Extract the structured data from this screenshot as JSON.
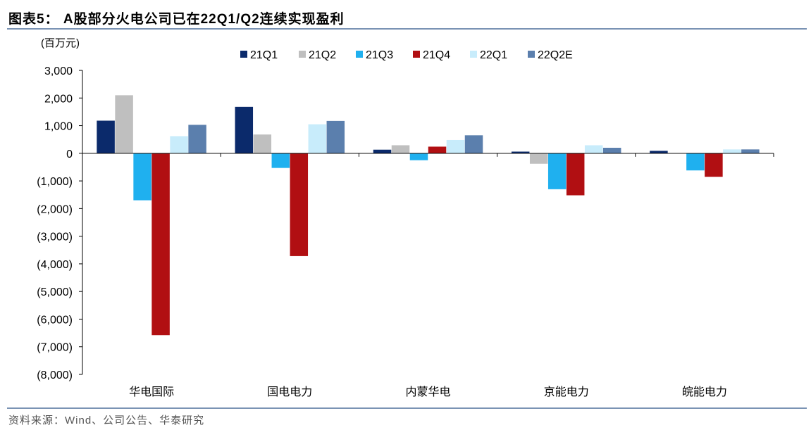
{
  "header": {
    "title": "图表5：  A股部分火电公司已在22Q1/Q2连续实现盈利"
  },
  "footer": {
    "source": "资料来源：Wind、公司公告、华泰研究"
  },
  "colors": {
    "21Q1": "#0b2a6b",
    "21Q2": "#bfbfbf",
    "21Q3": "#1fb0ef",
    "21Q4": "#b10f12",
    "22Q1": "#c8ecfb",
    "22Q2E": "#5b7fad",
    "rule": "#7a93b4"
  },
  "chart_data": {
    "type": "bar",
    "title": "A股部分火电公司已在22Q1/Q2连续实现盈利",
    "ylabel": "(百万元)",
    "xlabel": "",
    "ylim": [
      -8000,
      3000
    ],
    "yticks": [
      3000,
      2000,
      1000,
      0,
      -1000,
      -2000,
      -3000,
      -4000,
      -5000,
      -6000,
      -7000,
      -8000
    ],
    "ytick_labels": [
      "3,000",
      "2,000",
      "1,000",
      "0",
      "(1,000)",
      "(2,000)",
      "(3,000)",
      "(4,000)",
      "(5,000)",
      "(6,000)",
      "(7,000)",
      "(8,000)"
    ],
    "categories": [
      "华电国际",
      "国电电力",
      "内蒙华电",
      "京能电力",
      "皖能电力"
    ],
    "legend_position": "top",
    "grid": false,
    "series": [
      {
        "name": "21Q1",
        "values": [
          1180,
          1680,
          130,
          60,
          90
        ]
      },
      {
        "name": "21Q2",
        "values": [
          2100,
          680,
          290,
          -380,
          0
        ]
      },
      {
        "name": "21Q3",
        "values": [
          -1700,
          -530,
          -250,
          -1300,
          -620
        ]
      },
      {
        "name": "21Q4",
        "values": [
          -6580,
          -3720,
          240,
          -1520,
          -850
        ]
      },
      {
        "name": "22Q1",
        "values": [
          620,
          1050,
          480,
          290,
          140
        ]
      },
      {
        "name": "22Q2E",
        "values": [
          1030,
          1170,
          650,
          200,
          140
        ]
      }
    ]
  }
}
